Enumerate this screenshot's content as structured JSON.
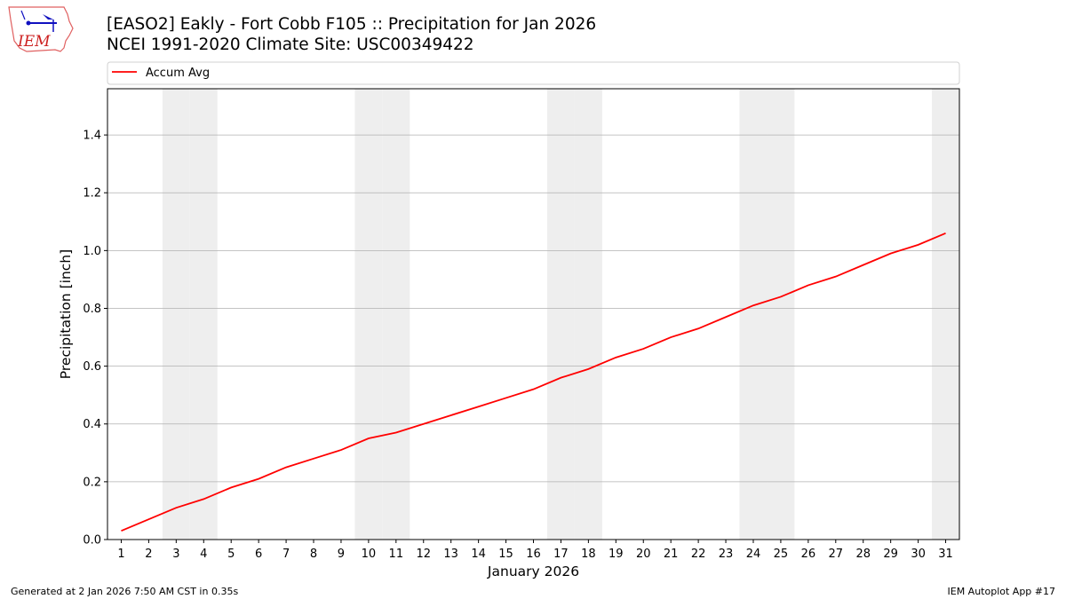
{
  "header": {
    "title_line1": "[EASO2] Eakly - Fort Cobb F105 :: Precipitation for Jan 2026",
    "title_line2": "NCEI 1991-2020 Climate Site: USC00349422",
    "logo_text": "IEM"
  },
  "footer": {
    "generated": "Generated at 2 Jan 2026 7:50 AM CST in 0.35s",
    "app": "IEM Autoplot App #17"
  },
  "chart_data": {
    "type": "line",
    "xlabel": "January 2026",
    "ylabel": "Precipitation [inch]",
    "xlim": [
      0.5,
      31.5
    ],
    "ylim": [
      0,
      1.56
    ],
    "x": [
      1,
      2,
      3,
      4,
      5,
      6,
      7,
      8,
      9,
      10,
      11,
      12,
      13,
      14,
      15,
      16,
      17,
      18,
      19,
      20,
      21,
      22,
      23,
      24,
      25,
      26,
      27,
      28,
      29,
      30,
      31
    ],
    "xticks": [
      "1",
      "2",
      "3",
      "4",
      "5",
      "6",
      "7",
      "8",
      "9",
      "10",
      "11",
      "12",
      "13",
      "14",
      "15",
      "16",
      "17",
      "18",
      "19",
      "20",
      "21",
      "22",
      "23",
      "24",
      "25",
      "26",
      "27",
      "28",
      "29",
      "30",
      "31"
    ],
    "yticks": [
      0.0,
      0.2,
      0.4,
      0.6,
      0.8,
      1.0,
      1.2,
      1.4
    ],
    "ytick_labels": [
      "0.0",
      "0.2",
      "0.4",
      "0.6",
      "0.8",
      "1.0",
      "1.2",
      "1.4"
    ],
    "grid": "horizontal",
    "legend_placement": "top, above plot",
    "weekend_days": [
      3,
      4,
      10,
      11,
      17,
      18,
      24,
      25,
      31
    ],
    "weekend_color": "#eeeeee",
    "series": [
      {
        "name": "Accum Avg",
        "color": "#ff0000",
        "values": [
          0.03,
          0.07,
          0.11,
          0.14,
          0.18,
          0.21,
          0.25,
          0.28,
          0.31,
          0.35,
          0.37,
          0.4,
          0.43,
          0.46,
          0.49,
          0.52,
          0.56,
          0.59,
          0.63,
          0.66,
          0.7,
          0.73,
          0.77,
          0.81,
          0.84,
          0.88,
          0.91,
          0.95,
          0.99,
          1.02,
          1.06
        ]
      }
    ]
  }
}
